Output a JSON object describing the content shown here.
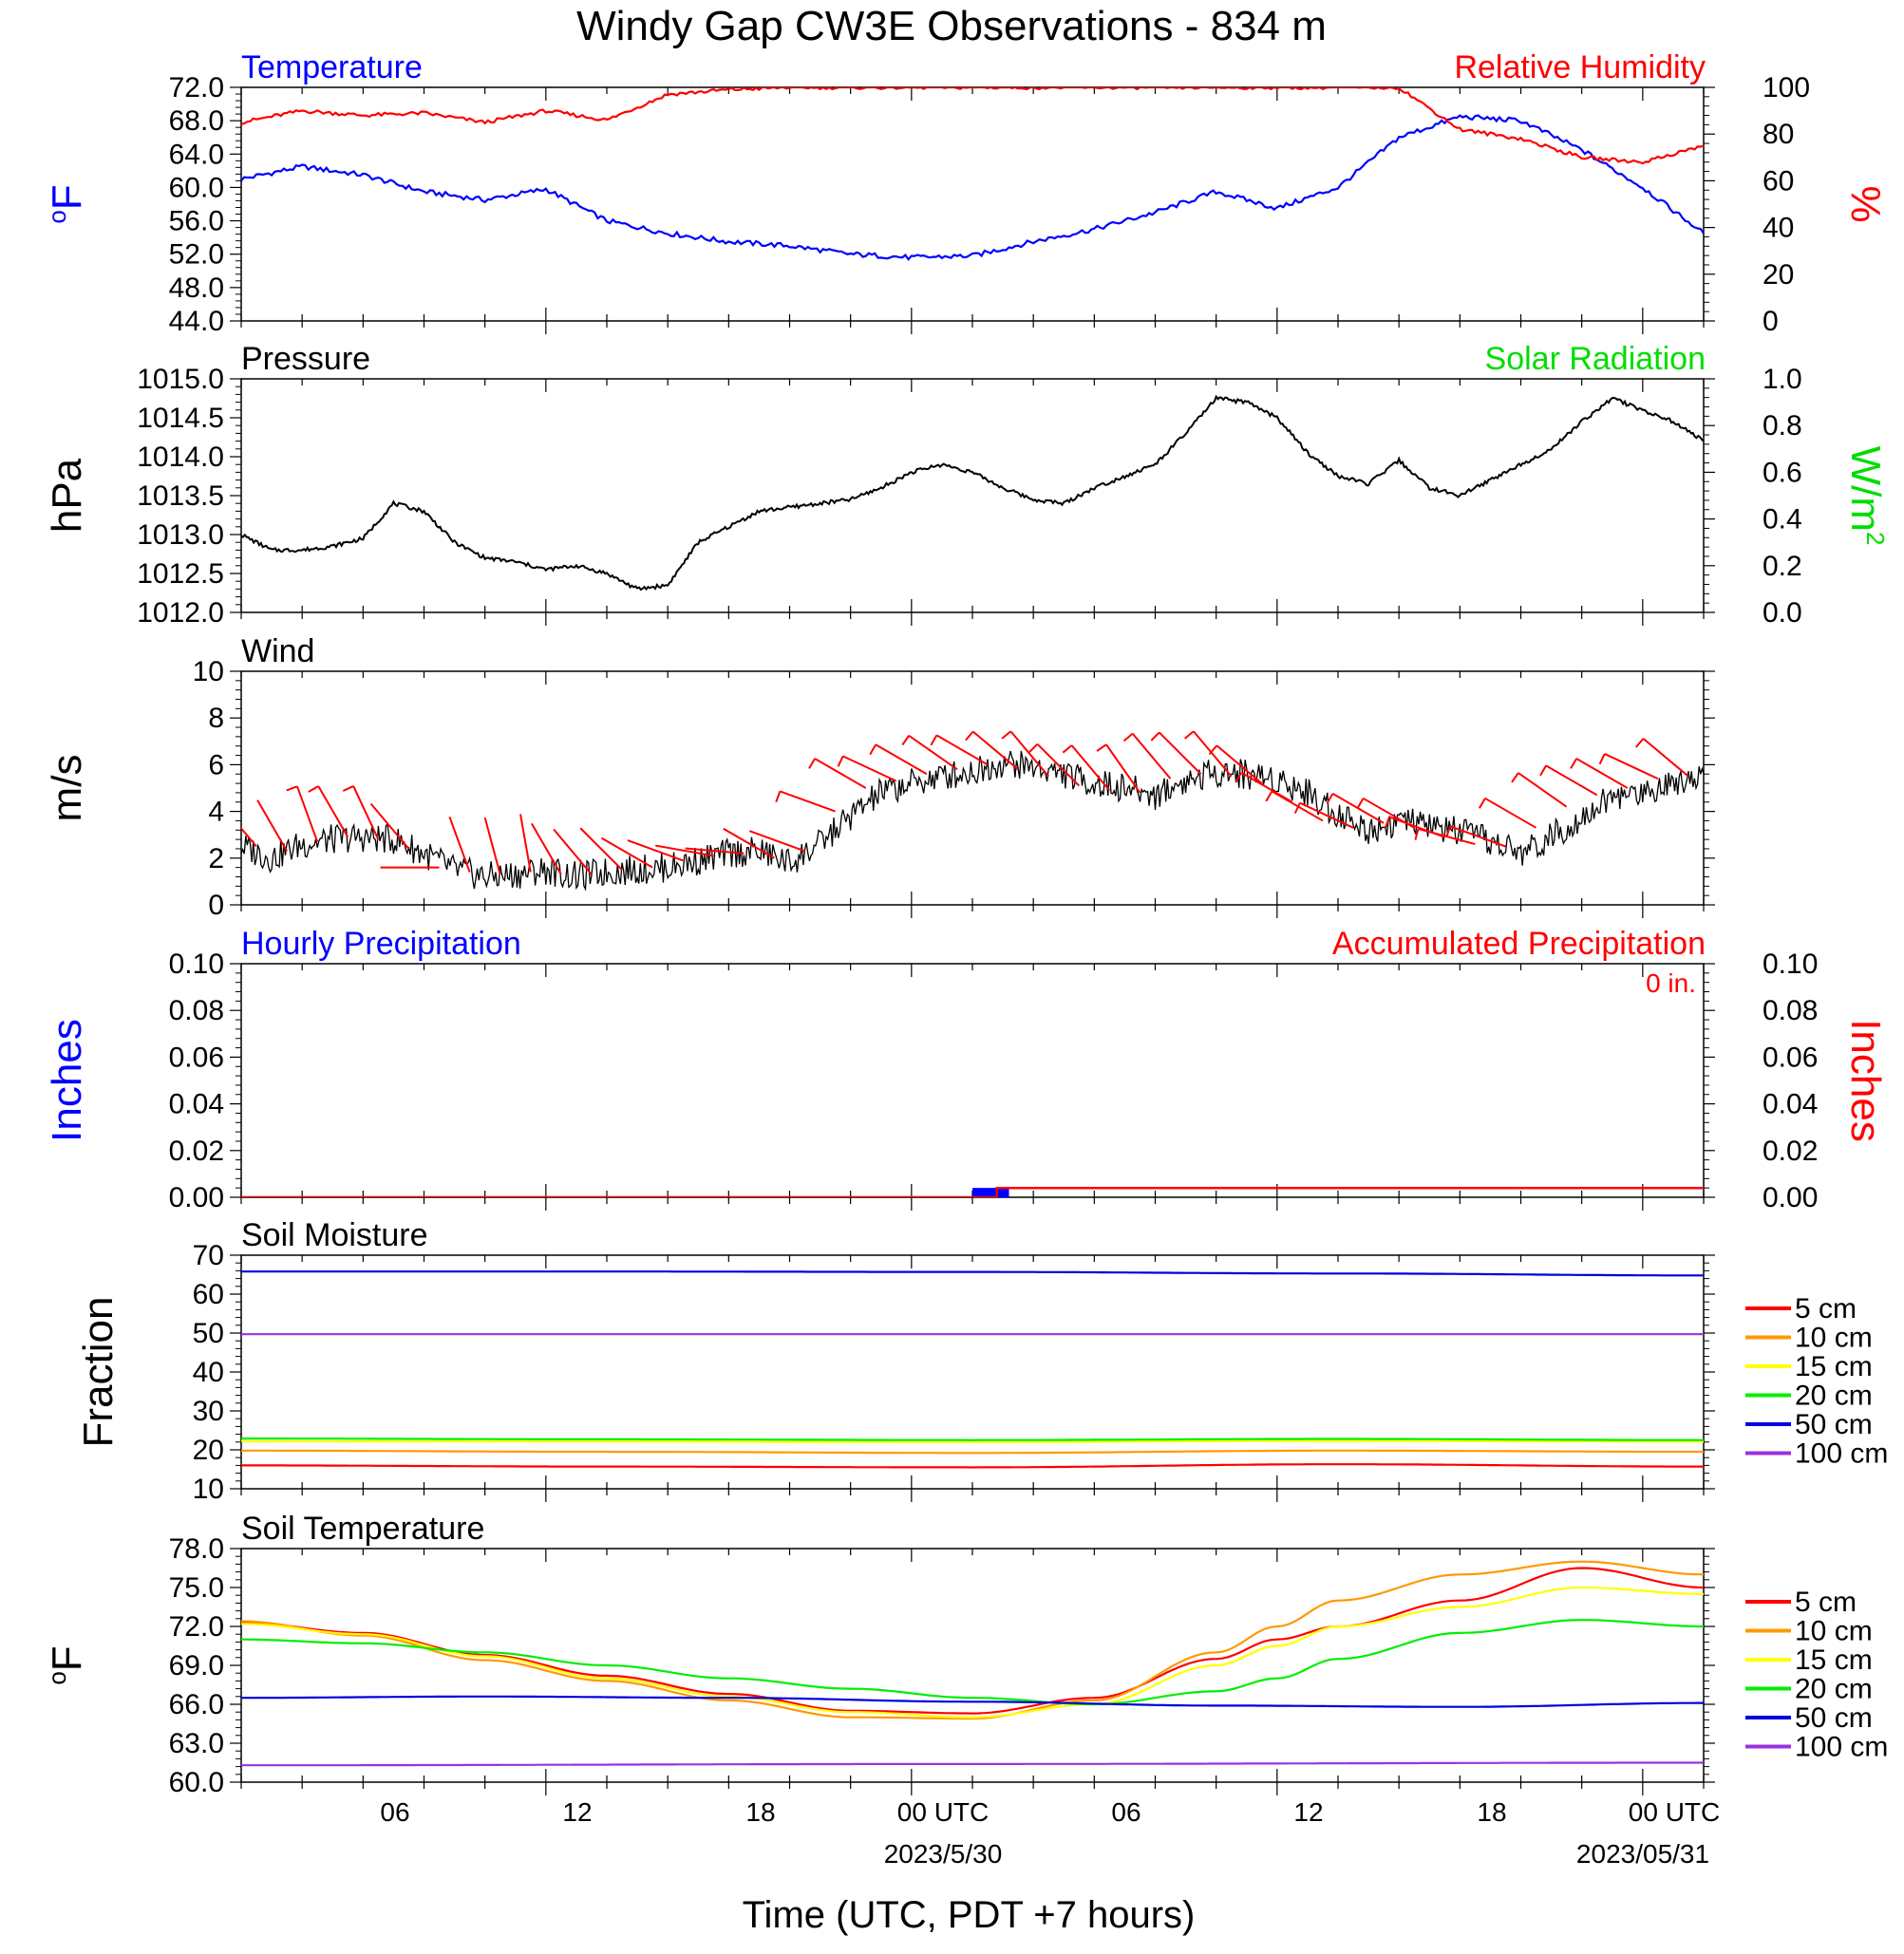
{
  "title": "Windy Gap CW3E Observations - 834 m",
  "x_axis": {
    "label": "Time (UTC, PDT +7 hours)",
    "ticks": [
      "06",
      "12",
      "18",
      "00 UTC",
      "06",
      "12",
      "18",
      "00 UTC"
    ],
    "dates": [
      "2023/5/30",
      "2023/05/31"
    ],
    "range_hours": [
      1,
      25
    ]
  },
  "colors": {
    "temperature": "#0000ff",
    "humidity": "#ff0000",
    "pressure": "#000000",
    "solar": "#00dd00",
    "wind_barbs": "#ff0000",
    "precip_hourly": "#0000ff",
    "precip_accum": "#ff0000",
    "depth_5": "#ff0000",
    "depth_10": "#ff9900",
    "depth_15": "#ffff00",
    "depth_20": "#00ee00",
    "depth_50": "#0000dd",
    "depth_100": "#9933dd"
  },
  "chart_data": [
    {
      "type": "line",
      "panel": "temperature_humidity",
      "left_title": "Temperature",
      "right_title": "Relative Humidity",
      "ylabel_left": "oF",
      "ylabel_right": "%",
      "ylim_left": [
        44,
        72
      ],
      "yticks_left": [
        "72.0",
        "68.0",
        "64.0",
        "60.0",
        "56.0",
        "52.0",
        "48.0",
        "44.0"
      ],
      "ylim_right": [
        0,
        100
      ],
      "yticks_right": [
        "100",
        "80",
        "60",
        "40",
        "20",
        "0"
      ],
      "series": [
        {
          "name": "Temperature",
          "axis": "left",
          "x": [
            1,
            2,
            3,
            4,
            5,
            6,
            7,
            8,
            9,
            10,
            11,
            12,
            13,
            14,
            15,
            16,
            17,
            18,
            19,
            20,
            21,
            22,
            23,
            24,
            25
          ],
          "values": [
            61,
            62.5,
            61.5,
            59.5,
            58.5,
            59.8,
            56,
            54.5,
            53.5,
            53,
            52,
            51.6,
            51.8,
            53.5,
            55,
            57,
            59.5,
            57.5,
            60,
            66,
            68.5,
            68,
            64.5,
            60,
            54.5
          ]
        },
        {
          "name": "Relative Humidity",
          "axis": "right",
          "x": [
            1,
            2,
            3,
            4,
            5,
            6,
            7,
            8,
            9,
            10,
            11,
            12,
            13,
            14,
            15,
            16,
            17,
            18,
            19,
            20,
            21,
            22,
            23,
            24,
            25
          ],
          "values": [
            85,
            90,
            88,
            89,
            85,
            90,
            86,
            97,
            99,
            100,
            100,
            100,
            100,
            100,
            100,
            100,
            100,
            100,
            100,
            100,
            82,
            78,
            70,
            68,
            75
          ]
        }
      ]
    },
    {
      "type": "line",
      "panel": "pressure_solar",
      "left_title": "Pressure",
      "right_title": "Solar Radiation",
      "ylabel_left": "hPa",
      "ylabel_right": "W/m2",
      "ylim_left": [
        1012.0,
        1015.0
      ],
      "yticks_left": [
        "1015.0",
        "1014.5",
        "1014.0",
        "1013.5",
        "1013.0",
        "1012.5",
        "1012.0"
      ],
      "ylim_right": [
        0.0,
        1.0
      ],
      "yticks_right": [
        "1.0",
        "0.8",
        "0.6",
        "0.4",
        "0.2",
        "0.0"
      ],
      "series": [
        {
          "name": "Pressure",
          "axis": "left",
          "x": [
            1,
            2,
            3,
            4,
            5,
            6,
            7,
            8,
            9,
            10,
            11,
            12,
            13,
            14,
            15,
            16,
            17,
            18,
            19,
            20,
            21,
            22,
            23,
            24,
            25,
            26,
            27,
            28,
            29,
            30,
            31,
            32,
            33,
            34,
            35,
            36,
            37,
            38,
            39,
            40,
            41,
            42,
            43,
            44,
            45,
            46,
            47,
            48,
            49
          ],
          "values": [
            1013.0,
            1012.8,
            1012.8,
            1012.85,
            1012.95,
            1013.4,
            1013.3,
            1012.9,
            1012.7,
            1012.65,
            1012.55,
            1012.6,
            1012.5,
            1012.3,
            1012.35,
            1012.9,
            1013.1,
            1013.3,
            1013.35,
            1013.4,
            1013.45,
            1013.6,
            1013.8,
            1013.9,
            1013.8,
            1013.6,
            1013.45,
            1013.4,
            1013.6,
            1013.75,
            1013.9,
            1014.3,
            1014.75,
            1014.7,
            1014.5,
            1014.05,
            1013.75,
            1013.65,
            1013.95,
            1013.6,
            1013.5,
            1013.7,
            1013.9,
            1014.1,
            1014.45,
            1014.75,
            1014.6,
            1014.45,
            1014.2
          ]
        },
        {
          "name": "Solar Radiation",
          "axis": "right",
          "x": [
            1,
            49
          ],
          "values": [
            null,
            null
          ]
        }
      ]
    },
    {
      "type": "line",
      "panel": "wind",
      "left_title": "Wind",
      "ylabel_left": "m/s",
      "ylim_left": [
        0,
        10
      ],
      "yticks_left": [
        "10",
        "8",
        "6",
        "4",
        "2",
        "0"
      ],
      "series": [
        {
          "name": "Wind",
          "x": [
            1,
            2,
            3,
            4,
            5,
            6,
            7,
            8,
            9,
            10,
            11,
            12,
            13,
            14,
            15,
            16,
            17,
            18,
            19,
            20,
            21,
            22,
            23,
            24,
            25,
            26,
            27,
            28,
            29,
            30,
            31,
            32,
            33,
            34,
            35,
            36,
            37,
            38,
            39,
            40,
            41,
            42,
            43,
            44,
            45,
            46,
            47,
            48,
            49
          ],
          "values": [
            2.5,
            2.0,
            2.6,
            2.8,
            2.9,
            2.8,
            2.2,
            1.5,
            1.2,
            1.3,
            1.5,
            1.2,
            1.4,
            1.5,
            1.6,
            1.9,
            2.2,
            2.3,
            1.8,
            2.6,
            3.8,
            4.8,
            5.2,
            5.5,
            5.7,
            6.1,
            5.9,
            5.6,
            5.2,
            5.0,
            4.7,
            5.3,
            5.7,
            5.6,
            5.4,
            4.8,
            3.9,
            3.2,
            3.6,
            3.4,
            3.1,
            2.7,
            2.2,
            2.9,
            3.8,
            4.6,
            4.8,
            5.3,
            5.6
          ]
        }
      ],
      "barbs": {
        "x": [
          1.5,
          2.5,
          3.5,
          4.5,
          5.5,
          6.5,
          7.5,
          8.5,
          9.5,
          10.5,
          11.5,
          12.5,
          13.5,
          14.5,
          15.5,
          16.5,
          17.5,
          18.5,
          19.5,
          20.5,
          21.5,
          22.5,
          23.5,
          24.5,
          25.5,
          26.5,
          27.5,
          28.5,
          29.5,
          30.5,
          31.5,
          32.5,
          33.5,
          34.5,
          35.5,
          36.5,
          37.5,
          38.5,
          39.5,
          40.5,
          41.5,
          42.5,
          43.5,
          44.5,
          45.5,
          46.5,
          47.5,
          48.5
        ],
        "speed": [
          2.5,
          2.3,
          2.7,
          2.9,
          2.8,
          2.4,
          1.6,
          1.4,
          1.3,
          1.4,
          1.3,
          1.3,
          1.5,
          1.6,
          1.9,
          2.1,
          2.2,
          2.0,
          2.3,
          4.0,
          5.0,
          5.3,
          5.6,
          5.8,
          6.0,
          5.8,
          5.5,
          5.1,
          4.9,
          4.8,
          5.4,
          5.6,
          5.5,
          5.2,
          4.4,
          3.6,
          3.3,
          3.5,
          3.3,
          2.9,
          2.6,
          2.5,
          3.3,
          4.2,
          4.7,
          5.0,
          5.4,
          5.5
        ],
        "direction_deg": [
          320,
          330,
          340,
          330,
          335,
          320,
          270,
          340,
          345,
          350,
          330,
          320,
          315,
          300,
          290,
          280,
          275,
          300,
          290,
          290,
          300,
          295,
          300,
          305,
          300,
          310,
          320,
          315,
          320,
          325,
          320,
          315,
          320,
          310,
          300,
          300,
          295,
          300,
          300,
          290,
          285,
          290,
          300,
          305,
          300,
          300,
          295,
          310
        ]
      }
    },
    {
      "type": "bar",
      "panel": "precipitation",
      "left_title": "Hourly Precipitation",
      "right_title": "Accumulated Precipitation",
      "annotation": "0 in.",
      "ylabel_left": "Inches",
      "ylabel_right": "Inches",
      "ylim_left": [
        0.0,
        0.1
      ],
      "yticks_left": [
        "0.10",
        "0.08",
        "0.06",
        "0.04",
        "0.02",
        "0.00"
      ],
      "ylim_right": [
        0.0,
        0.1
      ],
      "yticks_right": [
        "0.10",
        "0.08",
        "0.06",
        "0.04",
        "0.02",
        "0.00"
      ],
      "series": [
        {
          "name": "Hourly Precipitation",
          "x": [
            13.3
          ],
          "values": [
            0.004
          ]
        },
        {
          "name": "Accumulated Precipitation",
          "x": [
            1,
            13.4,
            25
          ],
          "values": [
            0.0,
            0.004,
            0.004
          ]
        }
      ]
    },
    {
      "type": "line",
      "panel": "soil_moisture",
      "left_title": "Soil Moisture",
      "ylabel_left": "Fraction",
      "ylim_left": [
        10,
        70
      ],
      "yticks_left": [
        "70",
        "60",
        "50",
        "40",
        "30",
        "20",
        "10"
      ],
      "legend": "right",
      "series": [
        {
          "name": "5 cm",
          "x": [
            1,
            7,
            13,
            19,
            25
          ],
          "values": [
            16.0,
            15.7,
            15.5,
            16.3,
            15.7
          ]
        },
        {
          "name": "10 cm",
          "x": [
            1,
            7,
            13,
            19,
            25
          ],
          "values": [
            19.8,
            19.5,
            19.2,
            19.8,
            19.5
          ]
        },
        {
          "name": "15 cm",
          "x": [
            1,
            7,
            13,
            19,
            25
          ],
          "values": [
            22.2,
            22.1,
            22.0,
            22.3,
            22.1
          ]
        },
        {
          "name": "20 cm",
          "x": [
            1,
            7,
            13,
            19,
            25
          ],
          "values": [
            22.9,
            22.7,
            22.5,
            22.8,
            22.5
          ]
        },
        {
          "name": "50 cm",
          "x": [
            1,
            7,
            13,
            19,
            25
          ],
          "values": [
            65.8,
            65.8,
            65.7,
            65.3,
            64.8
          ]
        },
        {
          "name": "100 cm",
          "x": [
            1,
            7,
            13,
            19,
            25
          ],
          "values": [
            49.7,
            49.7,
            49.7,
            49.7,
            49.7
          ]
        }
      ]
    },
    {
      "type": "line",
      "panel": "soil_temperature",
      "left_title": "Soil Temperature",
      "ylabel_left": "oF",
      "ylim_left": [
        60.0,
        78.0
      ],
      "yticks_left": [
        "78.0",
        "75.0",
        "72.0",
        "69.0",
        "66.0",
        "63.0",
        "60.0"
      ],
      "legend": "right",
      "series": [
        {
          "name": "5 cm",
          "x": [
            1,
            3,
            5,
            7,
            9,
            11,
            13,
            15,
            17,
            18,
            19,
            21,
            23,
            25
          ],
          "values": [
            72.3,
            71.5,
            69.8,
            68.2,
            66.8,
            65.5,
            65.3,
            66.5,
            69.5,
            71,
            72,
            74,
            76.5,
            75
          ]
        },
        {
          "name": "10 cm",
          "x": [
            1,
            3,
            5,
            7,
            9,
            11,
            13,
            15,
            17,
            18,
            19,
            21,
            23,
            25
          ],
          "values": [
            72.4,
            71.3,
            69.4,
            67.8,
            66.3,
            65.0,
            64.9,
            66.3,
            70.0,
            72,
            74,
            76,
            77,
            76
          ]
        },
        {
          "name": "15 cm",
          "x": [
            1,
            3,
            5,
            7,
            9,
            11,
            13,
            15,
            17,
            18,
            19,
            21,
            23,
            25
          ],
          "values": [
            72.2,
            71.4,
            69.7,
            68.0,
            66.6,
            65.4,
            65.0,
            66.0,
            69.0,
            70.5,
            72,
            73.5,
            75,
            74.5
          ]
        },
        {
          "name": "20 cm",
          "x": [
            1,
            3,
            5,
            7,
            9,
            11,
            13,
            15,
            17,
            18,
            19,
            21,
            23,
            25
          ],
          "values": [
            71.0,
            70.7,
            70.0,
            69.0,
            68.0,
            67.2,
            66.5,
            66.0,
            67.0,
            68,
            69.5,
            71.5,
            72.5,
            72
          ]
        },
        {
          "name": "50 cm",
          "x": [
            1,
            5,
            9,
            13,
            17,
            21,
            25
          ],
          "values": [
            66.5,
            66.6,
            66.5,
            66.2,
            65.9,
            65.8,
            66.1
          ]
        },
        {
          "name": "100 cm",
          "x": [
            1,
            13,
            25
          ],
          "values": [
            61.3,
            61.4,
            61.5
          ]
        }
      ]
    }
  ]
}
